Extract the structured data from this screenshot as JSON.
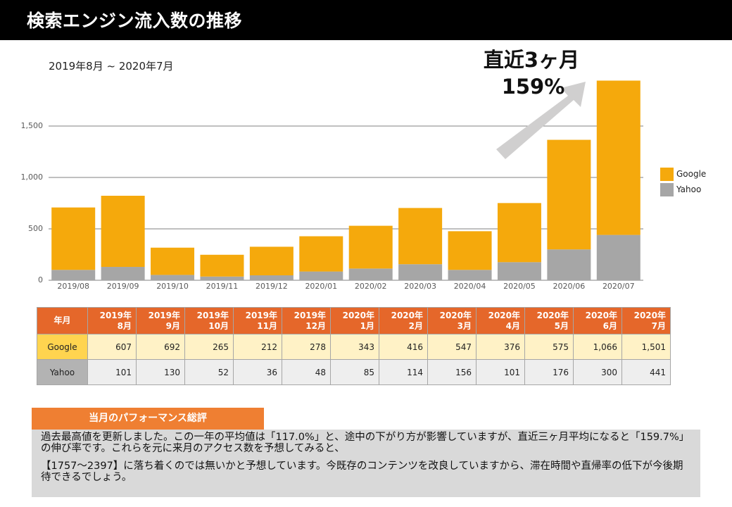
{
  "header": {
    "title": "検索エンジン流入数の推移"
  },
  "period": "2019年8月 ~ 2020年7月",
  "callout": {
    "line1": "直近3ヶ月",
    "line2": "159%",
    "arrow_icon": "up-right-arrow"
  },
  "legend": [
    {
      "name": "Google",
      "color": "#f5a90c"
    },
    {
      "name": "Yahoo",
      "color": "#a6a6a6"
    }
  ],
  "chart_data": {
    "type": "bar",
    "stacked": true,
    "title": "",
    "xlabel": "",
    "ylabel": "",
    "categories": [
      "2019/08",
      "2019/09",
      "2019/10",
      "2019/11",
      "2019/12",
      "2020/01",
      "2020/02",
      "2020/03",
      "2020/04",
      "2020/05",
      "2020/06",
      "2020/07"
    ],
    "series": [
      {
        "name": "Yahoo",
        "color": "#a6a6a6",
        "values": [
          101,
          130,
          52,
          36,
          48,
          85,
          114,
          156,
          101,
          176,
          300,
          441
        ]
      },
      {
        "name": "Google",
        "color": "#f5a90c",
        "values": [
          607,
          692,
          265,
          212,
          278,
          343,
          416,
          547,
          376,
          575,
          1066,
          1501
        ]
      }
    ],
    "ylim": [
      0,
      1500
    ],
    "yticks": [
      0,
      500,
      1000,
      1500
    ],
    "ytick_labels": [
      "0",
      "500",
      "1,000",
      "1,500"
    ],
    "grid": true,
    "legend_position": "right"
  },
  "table": {
    "corner": "年月",
    "columns": [
      {
        "year": "2019年",
        "month": "8月"
      },
      {
        "year": "2019年",
        "month": "9月"
      },
      {
        "year": "2019年",
        "month": "10月"
      },
      {
        "year": "2019年",
        "month": "11月"
      },
      {
        "year": "2019年",
        "month": "12月"
      },
      {
        "year": "2020年",
        "month": "1月"
      },
      {
        "year": "2020年",
        "month": "2月"
      },
      {
        "year": "2020年",
        "month": "3月"
      },
      {
        "year": "2020年",
        "month": "4月"
      },
      {
        "year": "2020年",
        "month": "5月"
      },
      {
        "year": "2020年",
        "month": "6月"
      },
      {
        "year": "2020年",
        "month": "7月"
      }
    ],
    "rows": [
      {
        "label": "Google",
        "values": [
          "607",
          "692",
          "265",
          "212",
          "278",
          "343",
          "416",
          "547",
          "376",
          "575",
          "1,066",
          "1,501"
        ]
      },
      {
        "label": "Yahoo",
        "values": [
          "101",
          "130",
          "52",
          "36",
          "48",
          "85",
          "114",
          "156",
          "101",
          "176",
          "300",
          "441"
        ]
      }
    ]
  },
  "review": {
    "title": "当月のパフォーマンス総評",
    "paragraph1": "過去最高値を更新しました。この一年の平均値は「117.0%」と、途中の下がり方が影響していますが、直近三ヶ月平均になると「159.7%」の伸び率です。これらを元に来月のアクセス数を予想してみると、",
    "paragraph2": "【1757～2397】に落ち着くのでは無いかと予想しています。今既存のコンテンツを改良していますから、滞在時間や直帰率の低下が今後期待できるでしょう。"
  }
}
